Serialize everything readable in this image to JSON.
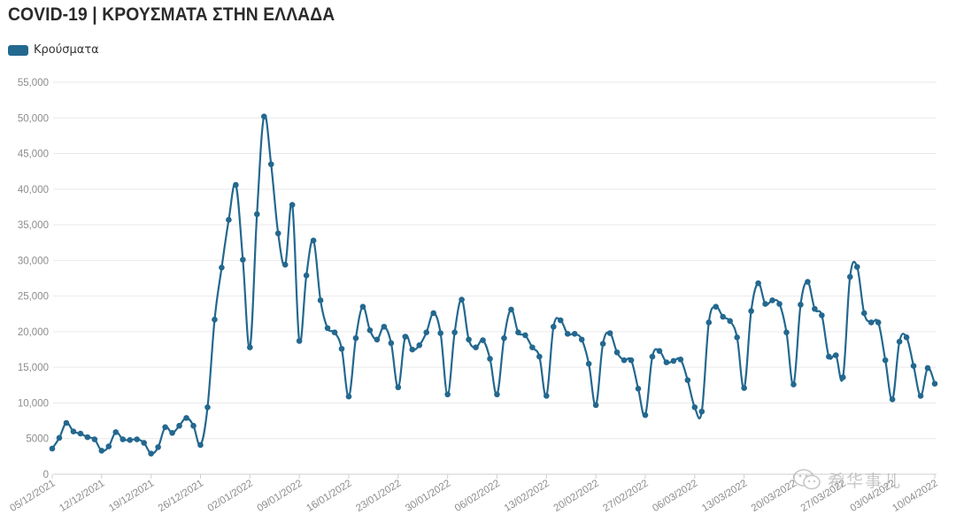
{
  "title": "COVID-19 | ΚΡΟΥΣΜΑΤΑ ΣΤΗΝ ΕΛΛΑΔΑ",
  "legend": {
    "label": "Κρούσματα",
    "color": "#23688f"
  },
  "watermark": {
    "text": "希华事儿",
    "icon": "wechat-icon"
  },
  "chart_data": {
    "type": "line",
    "title": "COVID-19 | ΚΡΟΥΣΜΑΤΑ ΣΤΗΝ ΕΛΛΑΔΑ",
    "xlabel": "",
    "ylabel": "",
    "ylim": [
      0,
      55000
    ],
    "yticks": [
      0,
      5000,
      10000,
      15000,
      20000,
      25000,
      30000,
      35000,
      40000,
      45000,
      50000,
      55000
    ],
    "ytick_labels": [
      "0",
      "5000",
      "10,000",
      "15,000",
      "20,000",
      "25,000",
      "30,000",
      "35,000",
      "40,000",
      "45,000",
      "50,000",
      "55,000"
    ],
    "x_start": "05/12/2021",
    "x_end": "10/04/2022",
    "xticks": [
      "05/12/2021",
      "12/12/2021",
      "19/12/2021",
      "26/12/2021",
      "02/01/2022",
      "09/01/2022",
      "16/01/2022",
      "23/01/2022",
      "30/01/2022",
      "06/02/2022",
      "13/02/2022",
      "20/02/2022",
      "27/02/2022",
      "06/03/2022",
      "13/03/2022",
      "20/03/2022",
      "27/03/2022",
      "03/04/2022",
      "10/04/2022"
    ],
    "grid": true,
    "legend_position": "top-left",
    "series": [
      {
        "name": "Κρούσματα",
        "color": "#23688f",
        "values": [
          3600,
          5100,
          7200,
          6000,
          5700,
          5200,
          4900,
          3300,
          3900,
          5900,
          4900,
          4800,
          4900,
          4400,
          2900,
          3800,
          6600,
          5800,
          6800,
          7900,
          6800,
          4100,
          9400,
          21700,
          29000,
          35700,
          40600,
          30100,
          17800,
          36500,
          50200,
          43500,
          33800,
          29400,
          37800,
          18700,
          27900,
          32800,
          24400,
          20500,
          19900,
          17600,
          10900,
          19100,
          23500,
          20200,
          18900,
          20700,
          18400,
          12200,
          19300,
          17500,
          18100,
          19900,
          22600,
          19800,
          11200,
          19900,
          24500,
          18900,
          17800,
          18800,
          16200,
          11200,
          19100,
          23100,
          19900,
          19500,
          17800,
          16500,
          11000,
          20700,
          21600,
          19700,
          19700,
          18900,
          15500,
          9700,
          18300,
          19800,
          17100,
          16000,
          16000,
          12000,
          8300,
          16500,
          17300,
          15700,
          15900,
          16100,
          13200,
          9400,
          8800,
          21300,
          23500,
          22100,
          21500,
          19200,
          12100,
          22900,
          26800,
          23900,
          24400,
          23900,
          19900,
          12600,
          23800,
          27000,
          23200,
          22300,
          16500,
          16700,
          13600,
          27700,
          29100,
          22600,
          21300,
          21300,
          16000,
          10500,
          18600,
          19200,
          15200,
          11000,
          14900,
          12700
        ]
      }
    ]
  }
}
